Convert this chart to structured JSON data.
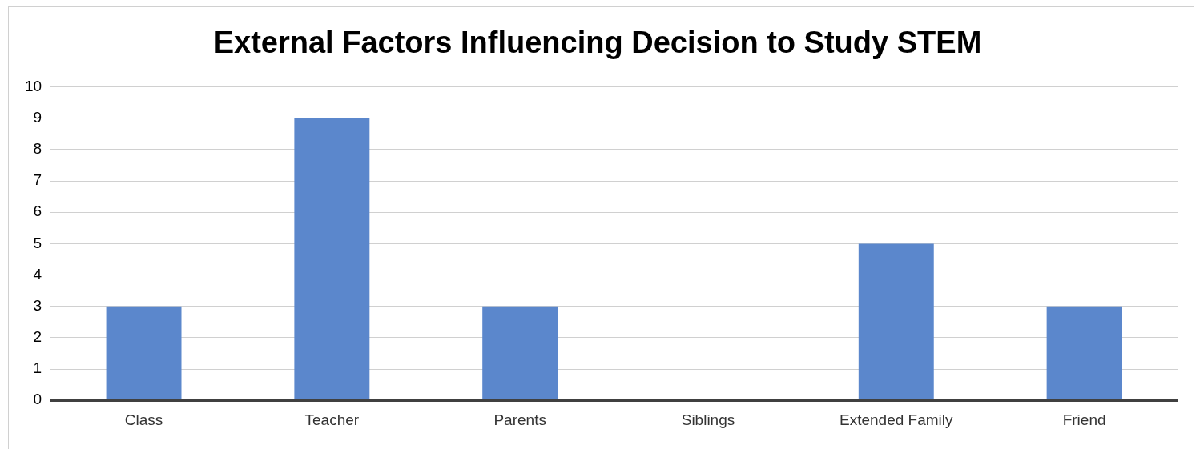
{
  "chart_data": {
    "type": "bar",
    "title": "External Factors Influencing Decision to Study STEM",
    "categories": [
      "Class",
      "Teacher",
      "Parents",
      "Siblings",
      "Extended Family",
      "Friend"
    ],
    "values": [
      3,
      9,
      3,
      0,
      5,
      3
    ],
    "color": "#5b87cc",
    "ylim": [
      0,
      10
    ],
    "yticks": [
      0,
      1,
      2,
      3,
      4,
      5,
      6,
      7,
      8,
      9,
      10
    ],
    "grid": "y",
    "legend": false
  }
}
